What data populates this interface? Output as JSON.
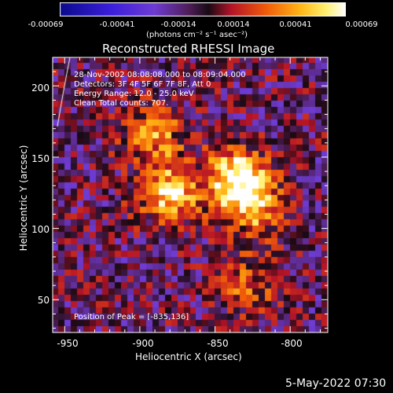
{
  "chart_data": {
    "type": "heatmap",
    "title": "Reconstructed RHESSI Image",
    "xlabel": "Heliocentric X (arcsec)",
    "ylabel": "Heliocentric Y (arcsec)",
    "xlim": [
      -958,
      -775
    ],
    "ylim": [
      27,
      220
    ],
    "x_ticks": [
      "-950",
      "-900",
      "-850",
      "-800"
    ],
    "x_tick_values": [
      -950,
      -900,
      -850,
      -800
    ],
    "y_ticks": [
      "50",
      "100",
      "150",
      "200"
    ],
    "y_tick_values": [
      50,
      100,
      150,
      200
    ],
    "colorbar": {
      "ticks": [
        "-0.00069",
        "-0.00041",
        "-0.00014",
        "0.00014",
        "0.00041",
        "0.00069"
      ],
      "tick_values": [
        -0.00069,
        -0.00041,
        -0.00014,
        0.00014,
        0.00041,
        0.00069
      ],
      "units_label": "(photons cm⁻² s⁻¹ asec⁻²)",
      "range": [
        -0.00069,
        0.00069
      ]
    },
    "annotations": [
      "28-Nov-2002 08:08:08.000 to 08:09:04.000",
      "Detectors: 3F 4F 5F 6F 7F 8F, Att 0",
      "Energy Range: 12.0 - 25.0 keV",
      "Clean     Total counts: 707."
    ],
    "peak_label": "Position of Peak = [-835,136]",
    "peak_position": [
      -835,
      136
    ],
    "sources": [
      {
        "x": -835,
        "y": 136,
        "peak": 0.00069
      },
      {
        "x": -880,
        "y": 125,
        "peak": 0.0006
      },
      {
        "x": -825,
        "y": 115,
        "peak": 0.0005
      },
      {
        "x": -890,
        "y": 165,
        "peak": 0.0004
      },
      {
        "x": -830,
        "y": 60,
        "peak": 0.0003
      }
    ]
  },
  "footer": {
    "timestamp": "5-May-2022 07:30"
  }
}
